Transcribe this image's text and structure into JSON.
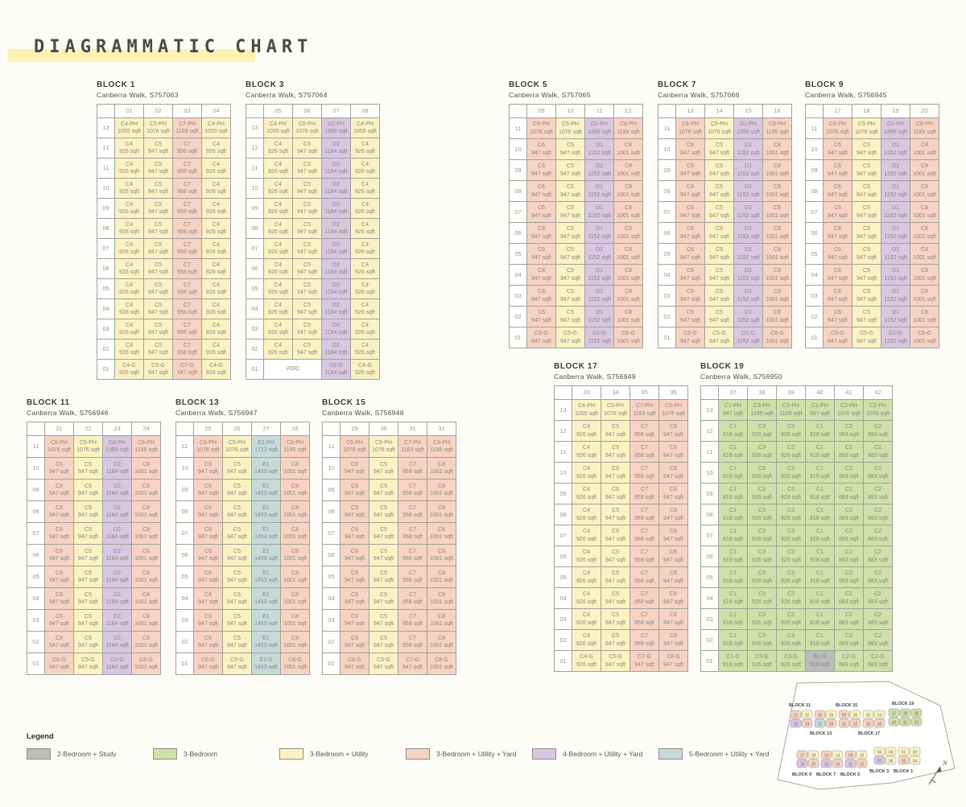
{
  "title": "DIAGRAMMATIC CHART",
  "palette": {
    "u": "#faf2c2",
    "y": "#f7d3c3",
    "p": "#d9c7e1",
    "t": "#c6dbd9",
    "g": "#cfe0a8",
    "b": "#bcbcbc",
    "v": "#ffffff"
  },
  "legend": {
    "title": "Legend",
    "items": [
      {
        "label": "2-Bedroom + Study",
        "color": "#bcbcbc"
      },
      {
        "label": "3-Bedroom",
        "color": "#cfe0a8"
      },
      {
        "label": "3-Bedroom + Utility",
        "color": "#faf2c2"
      },
      {
        "label": "3-Bedroom + Utility + Yard",
        "color": "#f7d3c3"
      },
      {
        "label": "4-Bedroom + Utility + Yard",
        "color": "#d9c7e1"
      },
      {
        "label": "5-Bedroom + Utility + Yard",
        "color": "#c6dbd9"
      }
    ]
  },
  "blocks": [
    {
      "name": "BLOCK 1",
      "address": "Canberra Walk, S757063",
      "columns": [
        "01",
        "02",
        "03",
        "04"
      ],
      "floors": [
        "13",
        "12",
        "11",
        "10",
        "09",
        "08",
        "07",
        "06",
        "05",
        "04",
        "03",
        "02",
        "01"
      ],
      "penthouse": [
        [
          "C4-PH",
          "1055 sqft",
          "u"
        ],
        [
          "C5-PH",
          "1076 sqft",
          "u"
        ],
        [
          "C7-PH",
          "1163 sqft",
          "y"
        ],
        [
          "C4-PH",
          "1055 sqft",
          "u"
        ]
      ],
      "typical": [
        [
          "C4",
          "926 sqft",
          "u"
        ],
        [
          "C5",
          "947 sqft",
          "u"
        ],
        [
          "C7",
          "958 sqft",
          "y"
        ],
        [
          "C4",
          "926 sqft",
          "u"
        ]
      ],
      "ground": [
        [
          "C4-G",
          "926 sqft",
          "u"
        ],
        [
          "C5-G",
          "947 sqft",
          "u"
        ],
        [
          "C7-G",
          "947 sqft",
          "y"
        ],
        [
          "C4-G",
          "926 sqft",
          "u"
        ]
      ]
    },
    {
      "name": "BLOCK 3",
      "address": "Canberra Walk, S757064",
      "columns": [
        "05",
        "06",
        "07",
        "08"
      ],
      "floors": [
        "13",
        "12",
        "11",
        "10",
        "09",
        "08",
        "07",
        "06",
        "05",
        "04",
        "03",
        "02",
        "01"
      ],
      "penthouse": [
        [
          "C4-PH",
          "1055 sqft",
          "u"
        ],
        [
          "C5-PH",
          "1076 sqft",
          "u"
        ],
        [
          "D2-PH",
          "1389 sqft",
          "p"
        ],
        [
          "C4-PH",
          "1055 sqft",
          "u"
        ]
      ],
      "typical": [
        [
          "C4",
          "926 sqft",
          "u"
        ],
        [
          "C5",
          "947 sqft",
          "u"
        ],
        [
          "D2",
          "1184 sqft",
          "p"
        ],
        [
          "C4",
          "926 sqft",
          "u"
        ]
      ],
      "ground": [
        [
          "VOID",
          "",
          "v",
          2
        ],
        [
          "D2-G",
          "1184 sqft",
          "p"
        ],
        [
          "C4-G",
          "926 sqft",
          "u"
        ]
      ]
    },
    {
      "name": "BLOCK 5",
      "address": "Canberra Walk, S757065",
      "columns": [
        "09",
        "10",
        "11",
        "12"
      ],
      "floors": [
        "11",
        "10",
        "09",
        "08",
        "07",
        "06",
        "05",
        "04",
        "03",
        "02",
        "01"
      ],
      "penthouse": [
        [
          "C6-PH",
          "1076 sqft",
          "y"
        ],
        [
          "C5-PH",
          "1076 sqft",
          "u"
        ],
        [
          "D1-PH",
          "1399 sqft",
          "p"
        ],
        [
          "C8-PH",
          "1195 sqft",
          "y"
        ]
      ],
      "typical": [
        [
          "C6",
          "947 sqft",
          "y"
        ],
        [
          "C5",
          "947 sqft",
          "u"
        ],
        [
          "D1",
          "1152 sqft",
          "p"
        ],
        [
          "C8",
          "1001 sqft",
          "y"
        ]
      ],
      "ground": [
        [
          "C6-G",
          "947 sqft",
          "y"
        ],
        [
          "C5-G",
          "947 sqft",
          "u"
        ],
        [
          "D1-G",
          "1152 sqft",
          "p"
        ],
        [
          "C8-G",
          "1001 sqft",
          "y"
        ]
      ]
    },
    {
      "name": "BLOCK 7",
      "address": "Canberra Walk, S757066",
      "columns": [
        "13",
        "14",
        "15",
        "16"
      ],
      "floors": [
        "11",
        "10",
        "09",
        "08",
        "07",
        "06",
        "05",
        "04",
        "03",
        "02",
        "01"
      ],
      "penthouse": [
        [
          "C6-PH",
          "1076 sqft",
          "y"
        ],
        [
          "C5-PH",
          "1076 sqft",
          "u"
        ],
        [
          "D1-PH",
          "1399 sqft",
          "p"
        ],
        [
          "C8-PH",
          "1195 sqft",
          "y"
        ]
      ],
      "typical": [
        [
          "C6",
          "947 sqft",
          "y"
        ],
        [
          "C5",
          "947 sqft",
          "u"
        ],
        [
          "D1",
          "1152 sqft",
          "p"
        ],
        [
          "C8",
          "1001 sqft",
          "y"
        ]
      ],
      "ground": [
        [
          "C6-G",
          "947 sqft",
          "y"
        ],
        [
          "C5-G",
          "947 sqft",
          "u"
        ],
        [
          "D1-G",
          "1152 sqft",
          "p"
        ],
        [
          "C8-G",
          "1001 sqft",
          "y"
        ]
      ]
    },
    {
      "name": "BLOCK 9",
      "address": "Canberra Walk, S756945",
      "columns": [
        "17",
        "18",
        "19",
        "20"
      ],
      "floors": [
        "11",
        "10",
        "09",
        "08",
        "07",
        "06",
        "05",
        "04",
        "03",
        "02",
        "01"
      ],
      "penthouse": [
        [
          "C6-PH",
          "1076 sqft",
          "y"
        ],
        [
          "C5-PH",
          "1076 sqft",
          "u"
        ],
        [
          "D1-PH",
          "1399 sqft",
          "p"
        ],
        [
          "C8-PH",
          "1195 sqft",
          "y"
        ]
      ],
      "typical": [
        [
          "C6",
          "947 sqft",
          "y"
        ],
        [
          "C5",
          "947 sqft",
          "u"
        ],
        [
          "D1",
          "1152 sqft",
          "p"
        ],
        [
          "C8",
          "1001 sqft",
          "y"
        ]
      ],
      "ground": [
        [
          "C6-G",
          "947 sqft",
          "y"
        ],
        [
          "C5-G",
          "947 sqft",
          "u"
        ],
        [
          "D1-G",
          "1152 sqft",
          "p"
        ],
        [
          "C8-G",
          "1001 sqft",
          "y"
        ]
      ]
    },
    {
      "name": "BLOCK 11",
      "address": "Canberra Walk, S756946",
      "columns": [
        "21",
        "22",
        "23",
        "24"
      ],
      "floors": [
        "11",
        "10",
        "09",
        "08",
        "07",
        "06",
        "05",
        "04",
        "03",
        "02",
        "01"
      ],
      "penthouse": [
        [
          "C6-PH",
          "1076 sqft",
          "y"
        ],
        [
          "C5-PH",
          "1076 sqft",
          "u"
        ],
        [
          "D2-PH",
          "1389 sqft",
          "p"
        ],
        [
          "C8-PH",
          "1195 sqft",
          "y"
        ]
      ],
      "typical": [
        [
          "C6",
          "947 sqft",
          "y"
        ],
        [
          "C5",
          "947 sqft",
          "u"
        ],
        [
          "D2",
          "1184 sqft",
          "p"
        ],
        [
          "C8",
          "1001 sqft",
          "y"
        ]
      ],
      "ground": [
        [
          "C6-G",
          "947 sqft",
          "y"
        ],
        [
          "C5-G",
          "947 sqft",
          "u"
        ],
        [
          "D2-G",
          "1184 sqft",
          "p"
        ],
        [
          "C8-G",
          "1001 sqft",
          "y"
        ]
      ]
    },
    {
      "name": "BLOCK 13",
      "address": "Canberra Walk, S756947",
      "columns": [
        "25",
        "26",
        "27",
        "28"
      ],
      "floors": [
        "11",
        "10",
        "09",
        "08",
        "07",
        "06",
        "05",
        "04",
        "03",
        "02",
        "01"
      ],
      "penthouse": [
        [
          "C6-PH",
          "1076 sqft",
          "y"
        ],
        [
          "C5-PH",
          "1076 sqft",
          "u"
        ],
        [
          "E1-PH",
          "1722 sqft",
          "t"
        ],
        [
          "C8-PH",
          "1195 sqft",
          "y"
        ]
      ],
      "typical": [
        [
          "C6",
          "947 sqft",
          "y"
        ],
        [
          "C5",
          "947 sqft",
          "u"
        ],
        [
          "E1",
          "1453 sqft",
          "t"
        ],
        [
          "C8",
          "1001 sqft",
          "y"
        ]
      ],
      "ground": [
        [
          "C6-G",
          "947 sqft",
          "y"
        ],
        [
          "C5-G",
          "947 sqft",
          "u"
        ],
        [
          "E1-G",
          "1453 sqft",
          "t"
        ],
        [
          "C8-G",
          "1001 sqft",
          "y"
        ]
      ]
    },
    {
      "name": "BLOCK 15",
      "address": "Canberra Walk, S756948",
      "columns": [
        "29",
        "30",
        "31",
        "32"
      ],
      "floors": [
        "11",
        "10",
        "09",
        "08",
        "07",
        "06",
        "05",
        "04",
        "03",
        "02",
        "01"
      ],
      "penthouse": [
        [
          "C6-PH",
          "1076 sqft",
          "y"
        ],
        [
          "C5-PH",
          "1076 sqft",
          "u"
        ],
        [
          "C7-PH",
          "1163 sqft",
          "y"
        ],
        [
          "C8-PH",
          "1195 sqft",
          "y"
        ]
      ],
      "typical": [
        [
          "C6",
          "947 sqft",
          "y"
        ],
        [
          "C5",
          "947 sqft",
          "u"
        ],
        [
          "C7",
          "958 sqft",
          "y"
        ],
        [
          "C8",
          "1001 sqft",
          "y"
        ]
      ],
      "ground": [
        [
          "C6-G",
          "947 sqft",
          "y"
        ],
        [
          "C5-G",
          "947 sqft",
          "u"
        ],
        [
          "C7-G",
          "947 sqft",
          "y"
        ],
        [
          "C8-G",
          "1001 sqft",
          "y"
        ]
      ]
    },
    {
      "name": "BLOCK 17",
      "address": "Canberra Walk, S756949",
      "columns": [
        "33",
        "34",
        "35",
        "36"
      ],
      "floors": [
        "13",
        "12",
        "11",
        "10",
        "09",
        "08",
        "07",
        "06",
        "05",
        "04",
        "03",
        "02",
        "01"
      ],
      "penthouse": [
        [
          "C4-PH",
          "1055 sqft",
          "u"
        ],
        [
          "C5-PH",
          "1076 sqft",
          "u"
        ],
        [
          "C7-PH",
          "1163 sqft",
          "y"
        ],
        [
          "C6-PH",
          "1076 sqft",
          "y"
        ]
      ],
      "typical": [
        [
          "C4",
          "926 sqft",
          "u"
        ],
        [
          "C5",
          "947 sqft",
          "u"
        ],
        [
          "C7",
          "958 sqft",
          "y"
        ],
        [
          "C6",
          "947 sqft",
          "y"
        ]
      ],
      "ground": [
        [
          "C4-G",
          "926 sqft",
          "u"
        ],
        [
          "C5-G",
          "947 sqft",
          "u"
        ],
        [
          "C7-G",
          "947 sqft",
          "y"
        ],
        [
          "C6-G",
          "947 sqft",
          "y"
        ]
      ]
    },
    {
      "name": "BLOCK 19",
      "address": "Canberra Walk, S756950",
      "columns": [
        "37",
        "38",
        "39",
        "40",
        "41",
        "42"
      ],
      "floors": [
        "13",
        "12",
        "11",
        "10",
        "09",
        "08",
        "07",
        "06",
        "05",
        "04",
        "03",
        "02",
        "01"
      ],
      "penthouse": [
        [
          "C1-PH",
          "947 sqft",
          "g"
        ],
        [
          "C3-PH",
          "1109 sqft",
          "g"
        ],
        [
          "C3-PH",
          "1109 sqft",
          "g"
        ],
        [
          "C1-PH",
          "947 sqft",
          "g"
        ],
        [
          "C2-PH",
          "1076 sqft",
          "g"
        ],
        [
          "C2-PH",
          "1076 sqft",
          "g"
        ]
      ],
      "typical": [
        [
          "C1",
          "818 sqft",
          "g"
        ],
        [
          "C3",
          "926 sqft",
          "g"
        ],
        [
          "C3",
          "926 sqft",
          "g"
        ],
        [
          "C1",
          "818 sqft",
          "g"
        ],
        [
          "C2",
          "883 sqft",
          "g"
        ],
        [
          "C2",
          "883 sqft",
          "g"
        ]
      ],
      "ground": [
        [
          "C1-G",
          "818 sqft",
          "g"
        ],
        [
          "C3-G",
          "926 sqft",
          "g"
        ],
        [
          "C3-G",
          "926 sqft",
          "g"
        ],
        [
          "B1-G",
          "829 sqft",
          "b"
        ],
        [
          "C2-G",
          "883 sqft",
          "g"
        ],
        [
          "C2-G",
          "883 sqft",
          "g"
        ]
      ]
    }
  ],
  "sitemap": {
    "north_label": "N",
    "clusters": [
      {
        "label": "BLOCK 11",
        "units": [
          [
            "21",
            "y"
          ],
          [
            "22",
            "u"
          ],
          [
            "23",
            "p"
          ],
          [
            "24",
            "y"
          ]
        ]
      },
      {
        "label": "BLOCK 13",
        "units": [
          [
            "25",
            "y"
          ],
          [
            "26",
            "u"
          ],
          [
            "27",
            "t"
          ],
          [
            "28",
            "y"
          ]
        ]
      },
      {
        "label": "BLOCK 15",
        "units": [
          [
            "29",
            "y"
          ],
          [
            "30",
            "u"
          ],
          [
            "31",
            "y"
          ],
          [
            "32",
            "y"
          ]
        ]
      },
      {
        "label": "BLOCK 17",
        "units": [
          [
            "33",
            "u"
          ],
          [
            "34",
            "u"
          ],
          [
            "35",
            "y"
          ],
          [
            "36",
            "y"
          ]
        ]
      },
      {
        "label": "BLOCK 19",
        "units": [
          [
            "37",
            "g"
          ],
          [
            "38",
            "g"
          ],
          [
            "39",
            "g"
          ],
          [
            "40",
            "g"
          ],
          [
            "41",
            "g"
          ],
          [
            "42",
            "g"
          ]
        ]
      },
      {
        "label": "BLOCK 9",
        "units": [
          [
            "17",
            "y"
          ],
          [
            "18",
            "u"
          ],
          [
            "19",
            "p"
          ],
          [
            "20",
            "y"
          ]
        ]
      },
      {
        "label": "BLOCK 7",
        "units": [
          [
            "13",
            "y"
          ],
          [
            "14",
            "u"
          ],
          [
            "15",
            "p"
          ],
          [
            "16",
            "y"
          ]
        ]
      },
      {
        "label": "BLOCK 5",
        "units": [
          [
            "09",
            "y"
          ],
          [
            "10",
            "u"
          ],
          [
            "11",
            "p"
          ],
          [
            "12",
            "y"
          ]
        ]
      },
      {
        "label": "BLOCK 3",
        "units": [
          [
            "05",
            "u"
          ],
          [
            "06",
            "u"
          ],
          [
            "07",
            "p"
          ],
          [
            "08",
            "u"
          ]
        ]
      },
      {
        "label": "BLOCK 1",
        "units": [
          [
            "01",
            "u"
          ],
          [
            "02",
            "u"
          ],
          [
            "03",
            "y"
          ],
          [
            "04",
            "u"
          ]
        ]
      }
    ]
  }
}
